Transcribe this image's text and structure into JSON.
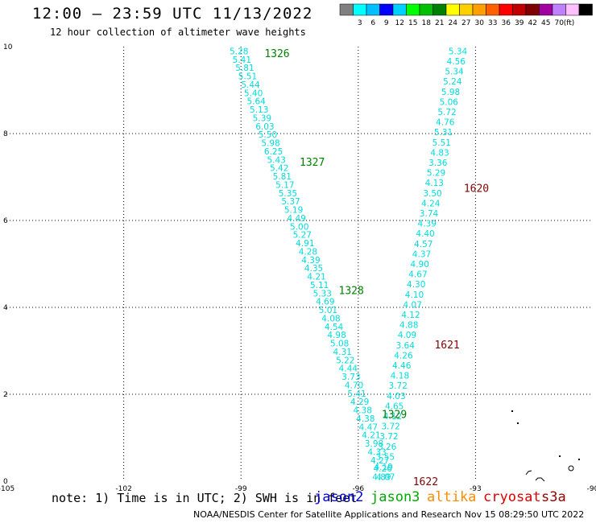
{
  "header": {
    "title": "12:00 – 23:59 UTC 11/13/2022",
    "subtitle": "12 hour collection of altimeter wave heights"
  },
  "legend": {
    "colors": [
      "#808080",
      "#00ffff",
      "#00bfff",
      "#0000ff",
      "#00d0ff",
      "#00ff00",
      "#00c000",
      "#008000",
      "#ffff00",
      "#ffd000",
      "#ffa000",
      "#ff6000",
      "#ff0000",
      "#c00000",
      "#800000",
      "#a000a0",
      "#c080ff",
      "#ffc0ff",
      "#000000"
    ],
    "labels": [
      "3",
      "6",
      "9",
      "12",
      "15",
      "18",
      "21",
      "24",
      "27",
      "30",
      "33",
      "36",
      "39",
      "42",
      "45",
      "70"
    ],
    "unit": "(ft)"
  },
  "map": {
    "xticks": [
      "-105",
      "-102",
      "-99",
      "-96",
      "-93",
      "-90"
    ],
    "yticks": [
      "0",
      "2",
      "4",
      "6",
      "8",
      "10"
    ],
    "xmin": -105,
    "xmax": -90,
    "ymin": 0,
    "ymax": 10,
    "grid": "dotted",
    "swh_color": "#00dddd",
    "left_track": {
      "x_start": -99.05,
      "y_start": 9.9,
      "x_end": -95.3,
      "y_end": 0.1,
      "values": [
        "5.28",
        "5.41",
        "5.81",
        "5.51",
        "5.44",
        "5.40",
        "5.64",
        "5.13",
        "5.39",
        "6.03",
        "5.50",
        "5.98",
        "6.25",
        "5.43",
        "5.42",
        "5.81",
        "5.17",
        "5.35",
        "5.37",
        "5.19",
        "4.49",
        "5.00",
        "5.27",
        "4.91",
        "4.28",
        "4.39",
        "4.35",
        "4.21",
        "5.11",
        "5.33",
        "4.69",
        "5.01",
        "4.08",
        "4.54",
        "4.98",
        "5.08",
        "4.31",
        "5.22",
        "4.44",
        "3.73",
        "4.70",
        "5.41",
        "4.29",
        "4.38",
        "4.38",
        "4.47",
        "4.21",
        "3.98",
        "4.33",
        "4.27",
        "4.26",
        "4.07"
      ]
    },
    "right_track": {
      "x_start": -93.45,
      "y_start": 9.9,
      "x_end": -95.4,
      "y_end": 0.1,
      "values": [
        "5.34",
        "4.56",
        "5.34",
        "5.24",
        "5.98",
        "5.06",
        "5.72",
        "4.76",
        "5.31",
        "5.51",
        "4.83",
        "3.36",
        "5.29",
        "4.13",
        "3.50",
        "4.24",
        "3.74",
        "4.39",
        "4.40",
        "4.57",
        "4.37",
        "4.90",
        "4.67",
        "4.30",
        "4.10",
        "4.07",
        "4.12",
        "4.88",
        "4.09",
        "3.64",
        "4.26",
        "4.46",
        "4.18",
        "3.72",
        "4.03",
        "4.65",
        "4.12",
        "3.72",
        "3.72",
        "3.26",
        "3.55",
        "4.19",
        "4.89"
      ]
    },
    "time_labels": [
      {
        "text": "1326",
        "color": "#008000",
        "x": -98.4,
        "y": 9.85
      },
      {
        "text": "1327",
        "color": "#008000",
        "x": -97.5,
        "y": 7.35
      },
      {
        "text": "1328",
        "color": "#008000",
        "x": -96.5,
        "y": 4.4
      },
      {
        "text": "1329",
        "color": "#008000",
        "x": -95.4,
        "y": 1.55
      },
      {
        "text": "1620",
        "color": "#800000",
        "x": -93.3,
        "y": 6.75
      },
      {
        "text": "1621",
        "color": "#800000",
        "x": -94.05,
        "y": 3.15
      },
      {
        "text": "1622",
        "color": "#800000",
        "x": -94.6,
        "y": 0.0
      }
    ]
  },
  "footer": {
    "note": "note: 1) Time is in UTC; 2) SWH is in feet",
    "satellites": [
      {
        "name": "jason2",
        "color": "#0000dd"
      },
      {
        "name": "jason3",
        "color": "#00aa00"
      },
      {
        "name": "altika",
        "color": "#ff8c00"
      },
      {
        "name": "cryosat",
        "color": "#dd0000"
      },
      {
        "name": "s3a",
        "color": "#990000"
      }
    ],
    "credit": "NOAA/NESDIS Center for Satellite Applications and Research    Nov 15 08:29:50 UTC 2022"
  }
}
